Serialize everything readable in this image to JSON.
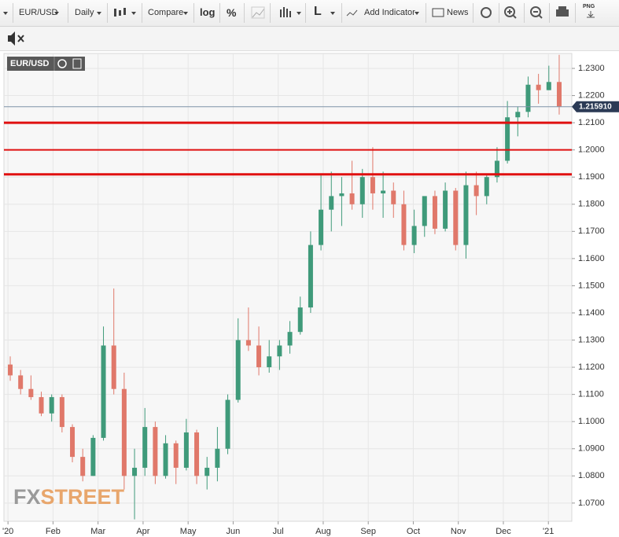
{
  "toolbar": {
    "symbol": "EUR/USD",
    "interval": "Daily",
    "compare": "Compare",
    "log": "log",
    "percent": "%",
    "line_style": "L",
    "add_indicator": "Add Indicator",
    "news": "News",
    "png": "PNG"
  },
  "chart_data": {
    "type": "candlestick",
    "symbol_label": "EUR/USD",
    "watermark": [
      "FX",
      "STREET"
    ],
    "up_color": "#3f9a7a",
    "down_color": "#e0786a",
    "grid": true,
    "xlim": [
      -0.09,
      12.52
    ],
    "xticks": [
      {
        "value": 0,
        "label": "'20"
      },
      {
        "value": 1,
        "label": "Feb"
      },
      {
        "value": 2,
        "label": "Mar"
      },
      {
        "value": 3,
        "label": "Apr"
      },
      {
        "value": 4,
        "label": "May"
      },
      {
        "value": 5,
        "label": "Jun"
      },
      {
        "value": 6,
        "label": "Jul"
      },
      {
        "value": 7,
        "label": "Aug"
      },
      {
        "value": 8,
        "label": "Sep"
      },
      {
        "value": 9,
        "label": "Oct"
      },
      {
        "value": 10,
        "label": "Nov"
      },
      {
        "value": 11,
        "label": "Dec"
      },
      {
        "value": 12,
        "label": "'21"
      }
    ],
    "ylim": [
      1.0633,
      1.2355
    ],
    "yticks": [
      {
        "value": 1.07,
        "label": "1.0700"
      },
      {
        "value": 1.08,
        "label": "1.0800"
      },
      {
        "value": 1.09,
        "label": "1.0900"
      },
      {
        "value": 1.1,
        "label": "1.1000"
      },
      {
        "value": 1.11,
        "label": "1.1100"
      },
      {
        "value": 1.12,
        "label": "1.1200"
      },
      {
        "value": 1.13,
        "label": "1.1300"
      },
      {
        "value": 1.14,
        "label": "1.1400"
      },
      {
        "value": 1.15,
        "label": "1.1500"
      },
      {
        "value": 1.16,
        "label": "1.1600"
      },
      {
        "value": 1.17,
        "label": "1.1700"
      },
      {
        "value": 1.18,
        "label": "1.1800"
      },
      {
        "value": 1.19,
        "label": "1.1900"
      },
      {
        "value": 1.2,
        "label": "1.2000"
      },
      {
        "value": 1.21,
        "label": "1.2100"
      },
      {
        "value": 1.22,
        "label": "1.2200"
      },
      {
        "value": 1.23,
        "label": "1.2300"
      }
    ],
    "x": [
      0.05,
      0.28,
      0.51,
      0.74,
      0.97,
      1.2,
      1.43,
      1.66,
      1.89,
      2.12,
      2.35,
      2.58,
      2.81,
      3.04,
      3.27,
      3.5,
      3.73,
      3.96,
      4.19,
      4.42,
      4.65,
      4.88,
      5.11,
      5.34,
      5.57,
      5.8,
      6.03,
      6.26,
      6.49,
      6.72,
      6.95,
      7.18,
      7.41,
      7.64,
      7.87,
      8.1,
      8.33,
      8.56,
      8.79,
      9.02,
      9.25,
      9.48,
      9.71,
      9.94,
      10.17,
      10.4,
      10.63,
      10.86,
      11.09,
      11.32,
      11.55,
      11.78,
      12.01,
      12.24
    ],
    "open": [
      1.121,
      1.117,
      1.112,
      1.109,
      1.103,
      1.109,
      1.098,
      1.087,
      1.08,
      1.094,
      1.128,
      1.112,
      1.08,
      1.083,
      1.098,
      1.08,
      1.092,
      1.083,
      1.096,
      1.08,
      1.083,
      1.09,
      1.108,
      1.13,
      1.128,
      1.12,
      1.124,
      1.128,
      1.133,
      1.142,
      1.165,
      1.178,
      1.183,
      1.184,
      1.18,
      1.19,
      1.184,
      1.185,
      1.18,
      1.165,
      1.172,
      1.183,
      1.171,
      1.185,
      1.165,
      1.187,
      1.183,
      1.19,
      1.196,
      1.212,
      1.214,
      1.224,
      1.222,
      1.225
    ],
    "high": [
      1.124,
      1.119,
      1.117,
      1.111,
      1.11,
      1.11,
      1.099,
      1.09,
      1.095,
      1.135,
      1.149,
      1.118,
      1.09,
      1.105,
      1.1,
      1.095,
      1.093,
      1.101,
      1.097,
      1.087,
      1.098,
      1.11,
      1.138,
      1.142,
      1.135,
      1.13,
      1.13,
      1.137,
      1.146,
      1.17,
      1.191,
      1.192,
      1.19,
      1.196,
      1.193,
      1.201,
      1.192,
      1.188,
      1.185,
      1.178,
      1.182,
      1.185,
      1.188,
      1.186,
      1.192,
      1.192,
      1.191,
      1.201,
      1.218,
      1.216,
      1.227,
      1.228,
      1.231,
      1.235
    ],
    "low": [
      1.115,
      1.11,
      1.108,
      1.102,
      1.1,
      1.096,
      1.085,
      1.078,
      1.08,
      1.093,
      1.11,
      1.075,
      1.064,
      1.08,
      1.077,
      1.079,
      1.077,
      1.082,
      1.077,
      1.075,
      1.078,
      1.088,
      1.107,
      1.126,
      1.117,
      1.118,
      1.119,
      1.125,
      1.132,
      1.14,
      1.163,
      1.17,
      1.172,
      1.178,
      1.175,
      1.178,
      1.175,
      1.175,
      1.163,
      1.162,
      1.168,
      1.169,
      1.17,
      1.163,
      1.16,
      1.176,
      1.18,
      1.188,
      1.195,
      1.205,
      1.212,
      1.217,
      1.222,
      1.213
    ],
    "close": [
      1.117,
      1.112,
      1.109,
      1.103,
      1.109,
      1.098,
      1.087,
      1.08,
      1.094,
      1.128,
      1.112,
      1.08,
      1.083,
      1.098,
      1.08,
      1.092,
      1.083,
      1.096,
      1.08,
      1.083,
      1.09,
      1.108,
      1.13,
      1.128,
      1.12,
      1.124,
      1.128,
      1.133,
      1.142,
      1.165,
      1.178,
      1.183,
      1.184,
      1.18,
      1.19,
      1.184,
      1.185,
      1.18,
      1.165,
      1.172,
      1.183,
      1.171,
      1.185,
      1.165,
      1.187,
      1.183,
      1.19,
      1.196,
      1.212,
      1.214,
      1.224,
      1.222,
      1.225,
      1.216
    ],
    "levels": [
      1.21,
      1.2,
      1.191
    ],
    "level_color": "#e01010",
    "level_widths": [
      3,
      2,
      3
    ],
    "last_price": {
      "value": 1.21591,
      "label": "1.215910"
    },
    "last_price_color": "#2b3a55"
  }
}
